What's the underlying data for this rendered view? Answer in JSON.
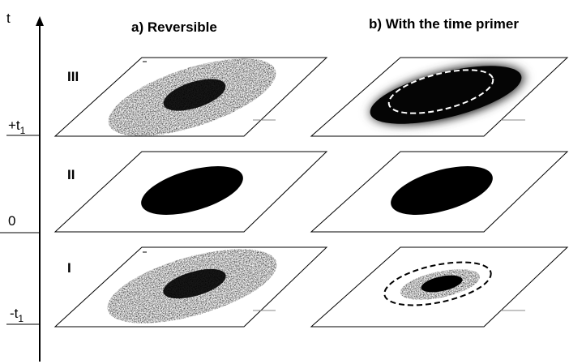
{
  "axis": {
    "label": "t",
    "ticks": [
      {
        "main": "+t",
        "sub": "1"
      },
      {
        "main": "0",
        "sub": ""
      },
      {
        "main": "-t",
        "sub": "1"
      }
    ]
  },
  "columns": [
    {
      "title": "a) Reversible"
    },
    {
      "title": "b) With the time primer"
    }
  ],
  "rows": [
    {
      "label": "III"
    },
    {
      "label": "II"
    },
    {
      "label": "I"
    }
  ],
  "colors": {
    "ink": "#000000",
    "background": "#ffffff",
    "dashed_outline_on_dark": "#ffffff",
    "dashed_outline_on_light": "#000000"
  }
}
